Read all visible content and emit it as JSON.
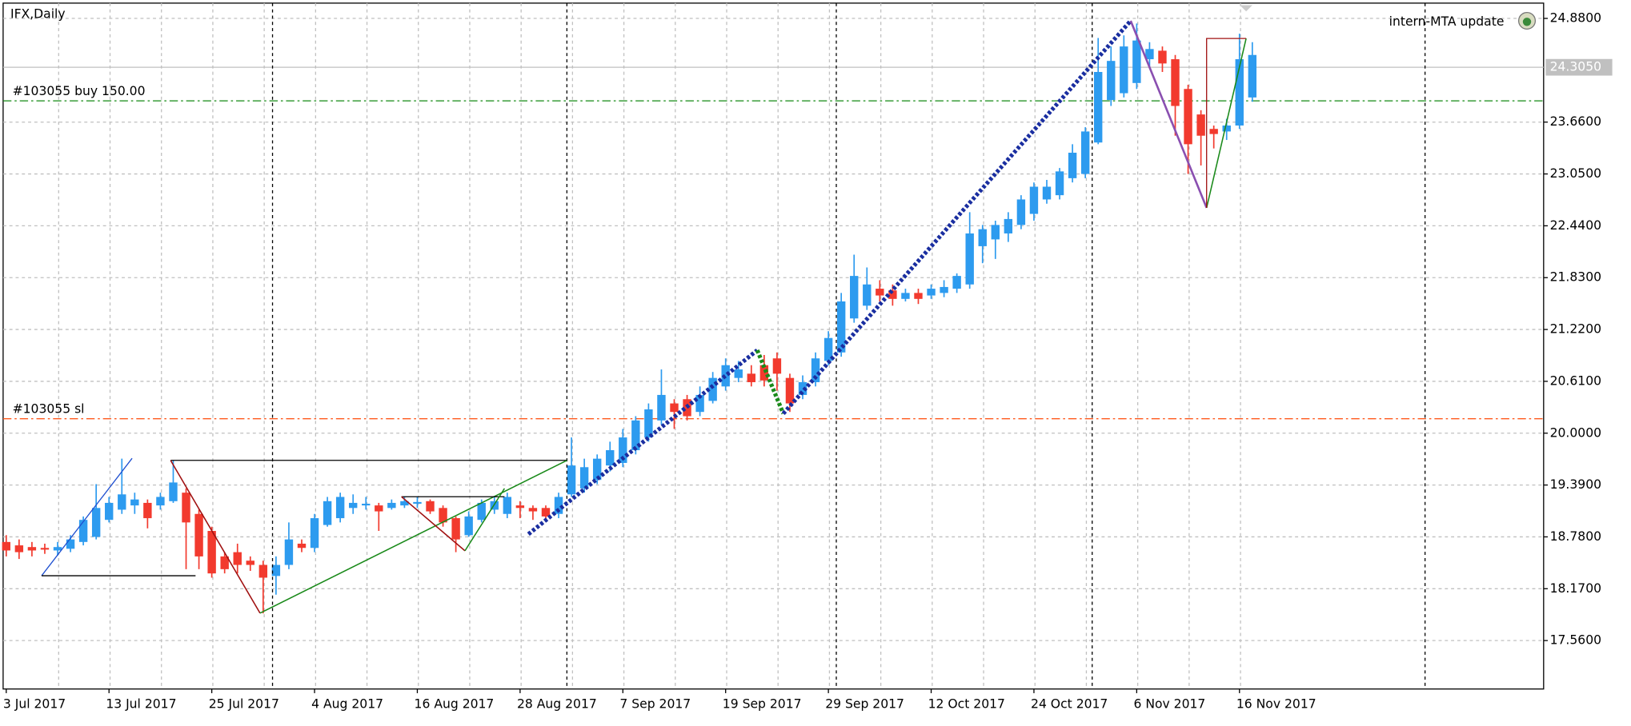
{
  "chart_data": {
    "type": "candlestick",
    "title": "IFX,Daily",
    "annotation": "intern-MTA update",
    "categories": [
      "3 Jul 2017",
      null,
      null,
      null,
      null,
      null,
      null,
      null,
      "13 Jul 2017",
      null,
      null,
      null,
      null,
      null,
      null,
      null,
      "25 Jul 2017",
      null,
      null,
      null,
      null,
      null,
      null,
      null,
      "4 Aug 2017",
      null,
      null,
      null,
      null,
      null,
      null,
      null,
      "16 Aug 2017",
      null,
      null,
      null,
      null,
      null,
      null,
      null,
      "28 Aug 2017",
      null,
      null,
      null,
      null,
      null,
      null,
      null,
      "7 Sep 2017",
      null,
      null,
      null,
      null,
      null,
      null,
      null,
      "19 Sep 2017",
      null,
      null,
      null,
      null,
      null,
      null,
      null,
      "29 Sep 2017",
      null,
      null,
      null,
      null,
      null,
      null,
      null,
      "12 Oct 2017",
      null,
      null,
      null,
      null,
      null,
      null,
      null,
      "24 Oct 2017",
      null,
      null,
      null,
      null,
      null,
      null,
      null,
      "6 Nov 2017",
      null,
      null,
      null,
      null,
      null,
      null,
      null,
      "16 Nov 2017",
      null
    ],
    "open": [
      18.72,
      18.68,
      18.66,
      18.65,
      18.62,
      18.64,
      18.72,
      18.78,
      18.98,
      19.1,
      19.15,
      19.18,
      19.15,
      19.2,
      19.3,
      19.05,
      18.85,
      18.55,
      18.6,
      18.5,
      18.45,
      18.32,
      18.45,
      18.7,
      18.65,
      18.92,
      19.0,
      19.12,
      19.15,
      19.15,
      19.12,
      19.15,
      19.17,
      19.2,
      19.12,
      19.0,
      18.8,
      18.98,
      19.1,
      19.05,
      19.15,
      19.12,
      19.12,
      19.05,
      19.28,
      19.35,
      19.45,
      19.62,
      19.65,
      19.8,
      19.95,
      20.15,
      20.35,
      20.4,
      20.25,
      20.38,
      20.55,
      20.65,
      20.7,
      20.8,
      20.88,
      20.65,
      20.45,
      20.6,
      20.85,
      20.95,
      21.35,
      21.5,
      21.7,
      21.68,
      21.58,
      21.65,
      21.62,
      21.65,
      21.7,
      21.75,
      22.2,
      22.28,
      22.35,
      22.45,
      22.58,
      22.75,
      22.8,
      23.0,
      23.05,
      23.42,
      23.92,
      24.0,
      24.12,
      24.4,
      24.5,
      24.4,
      24.05,
      23.75,
      23.58,
      23.55,
      23.62,
      23.95
    ],
    "high": [
      18.8,
      18.75,
      18.72,
      18.7,
      18.72,
      18.8,
      19.02,
      19.4,
      19.25,
      19.7,
      19.3,
      19.22,
      19.3,
      19.68,
      19.35,
      19.1,
      18.9,
      18.6,
      18.7,
      18.55,
      18.5,
      18.55,
      18.95,
      18.75,
      19.05,
      19.25,
      19.3,
      19.28,
      19.25,
      19.18,
      19.22,
      19.25,
      19.25,
      19.22,
      19.15,
      19.02,
      19.08,
      19.22,
      19.25,
      19.3,
      19.2,
      19.15,
      19.15,
      19.3,
      19.95,
      19.7,
      19.75,
      19.9,
      20.05,
      20.2,
      20.35,
      20.75,
      20.4,
      20.45,
      20.55,
      20.72,
      20.88,
      20.85,
      20.8,
      20.92,
      20.95,
      20.7,
      20.68,
      20.95,
      21.2,
      21.65,
      22.1,
      21.95,
      21.8,
      21.75,
      21.7,
      21.7,
      21.75,
      21.8,
      21.88,
      22.6,
      22.45,
      22.5,
      22.6,
      22.8,
      22.95,
      22.98,
      23.12,
      23.4,
      23.6,
      24.65,
      24.55,
      24.68,
      24.82,
      24.6,
      24.55,
      24.45,
      24.1,
      23.8,
      23.62,
      23.7,
      24.7,
      24.6
    ],
    "low": [
      18.55,
      18.52,
      18.55,
      18.58,
      18.56,
      18.6,
      18.68,
      18.75,
      18.95,
      19.05,
      19.05,
      18.88,
      19.1,
      19.18,
      18.4,
      18.4,
      18.3,
      18.35,
      18.35,
      18.38,
      17.88,
      18.1,
      18.4,
      18.6,
      18.6,
      18.9,
      18.95,
      19.05,
      19.1,
      18.85,
      19.1,
      19.12,
      19.12,
      19.05,
      18.9,
      18.6,
      18.78,
      18.95,
      19.05,
      19.0,
      19.0,
      18.98,
      18.98,
      19.0,
      19.25,
      19.3,
      19.4,
      19.55,
      19.6,
      19.75,
      19.9,
      20.1,
      20.05,
      20.15,
      20.2,
      20.35,
      20.5,
      20.6,
      20.55,
      20.55,
      20.5,
      20.25,
      20.4,
      20.55,
      20.8,
      20.9,
      21.3,
      21.45,
      21.55,
      21.5,
      21.55,
      21.52,
      21.58,
      21.6,
      21.65,
      21.7,
      22.0,
      22.05,
      22.25,
      22.4,
      22.5,
      22.7,
      22.75,
      22.95,
      23.0,
      23.4,
      23.85,
      23.95,
      24.05,
      24.3,
      24.25,
      23.5,
      23.05,
      23.15,
      23.35,
      23.45,
      23.58,
      23.9
    ],
    "close": [
      18.62,
      18.6,
      18.62,
      18.63,
      18.66,
      18.75,
      18.98,
      19.12,
      19.18,
      19.28,
      19.22,
      19.0,
      19.25,
      19.42,
      18.95,
      18.55,
      18.35,
      18.4,
      18.45,
      18.45,
      18.3,
      18.45,
      18.75,
      18.65,
      19.0,
      19.2,
      19.25,
      19.18,
      19.17,
      19.08,
      19.18,
      19.2,
      19.19,
      19.08,
      18.95,
      18.75,
      19.02,
      19.18,
      19.2,
      19.25,
      19.12,
      19.08,
      19.02,
      19.25,
      19.62,
      19.6,
      19.7,
      19.8,
      19.95,
      20.15,
      20.28,
      20.45,
      20.25,
      20.2,
      20.45,
      20.65,
      20.8,
      20.75,
      20.6,
      20.62,
      20.7,
      20.35,
      20.6,
      20.88,
      21.12,
      21.55,
      21.85,
      21.75,
      21.62,
      21.58,
      21.65,
      21.58,
      21.7,
      21.72,
      21.85,
      22.35,
      22.4,
      22.45,
      22.52,
      22.75,
      22.9,
      22.9,
      23.08,
      23.3,
      23.55,
      24.25,
      24.38,
      24.55,
      24.62,
      24.52,
      24.35,
      23.85,
      23.4,
      23.5,
      23.52,
      23.62,
      24.4,
      24.45
    ],
    "colors": {
      "up": "#2d9bef",
      "down": "#f23a2e"
    },
    "ylim": [
      16.99,
      25.06
    ],
    "yticks": [
      {
        "value": 17.56,
        "label": "17.5600"
      },
      {
        "value": 18.17,
        "label": "18.1700"
      },
      {
        "value": 18.78,
        "label": "18.7800"
      },
      {
        "value": 19.39,
        "label": "19.3900"
      },
      {
        "value": 20.0,
        "label": "20.0000"
      },
      {
        "value": 20.61,
        "label": "20.6100"
      },
      {
        "value": 21.22,
        "label": "21.2200"
      },
      {
        "value": 21.83,
        "label": "21.8300"
      },
      {
        "value": 22.44,
        "label": "22.4400"
      },
      {
        "value": 23.05,
        "label": "23.0500"
      },
      {
        "value": 23.66,
        "label": "23.6600"
      },
      {
        "value": 24.88,
        "label": "24.8800"
      }
    ],
    "levels": [
      {
        "label": "#103055 buy  150.00",
        "value": 23.91,
        "color": "#128a12"
      },
      {
        "label": "#103055 sl",
        "value": 20.17,
        "color": "#ff5a1e"
      }
    ],
    "current_price": {
      "value": 24.305,
      "label": "24.3050"
    },
    "grid": true
  }
}
